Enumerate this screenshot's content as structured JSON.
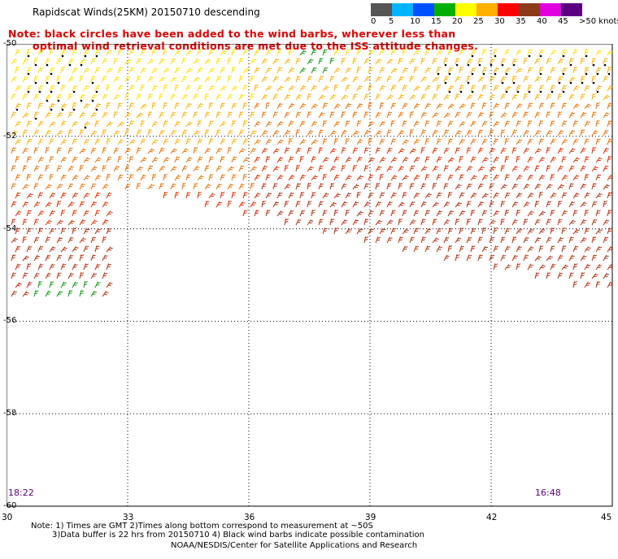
{
  "title": "Rapidscat Winds(25KM) 20150710 descending",
  "note_line1": "Note: black circles have been added to the wind barbs, wherever less than",
  "note_line2": "optimal wind retrieval conditions are met due to the ISS attitude changes.",
  "legend": {
    "labels": [
      "0",
      "5",
      "10",
      "15",
      "20",
      "25",
      "30",
      "35",
      "40",
      "45",
      ">50 knots"
    ],
    "colors": [
      "#555555",
      "#00b4ff",
      "#0050ff",
      "#00b000",
      "#ffff00",
      "#ffb000",
      "#ff0000",
      "#8b3a1a",
      "#e000e0",
      "#5a0080"
    ]
  },
  "axes": {
    "lon_labels": [
      "30",
      "33",
      "36",
      "39",
      "42",
      "45"
    ],
    "lon_values": [
      30,
      33,
      36,
      39,
      42,
      45
    ],
    "lat_labels": [
      "-50",
      "-52",
      "-54",
      "-56",
      "-58",
      "-60"
    ],
    "lat_values": [
      -50,
      -52,
      -54,
      -56,
      -58,
      -60
    ]
  },
  "times": {
    "left": "18:22",
    "right": "16:48"
  },
  "footer": {
    "line1": "Note: 1) Times are GMT 2)Times along bottom correspond to measurement at ~50S",
    "line2": "3)Data buffer is 22 hrs from 20150710 4) Black wind barbs indicate possible contamination",
    "line3": "NOAA/NESDIS/Center for Satellite Applications and Research"
  }
}
